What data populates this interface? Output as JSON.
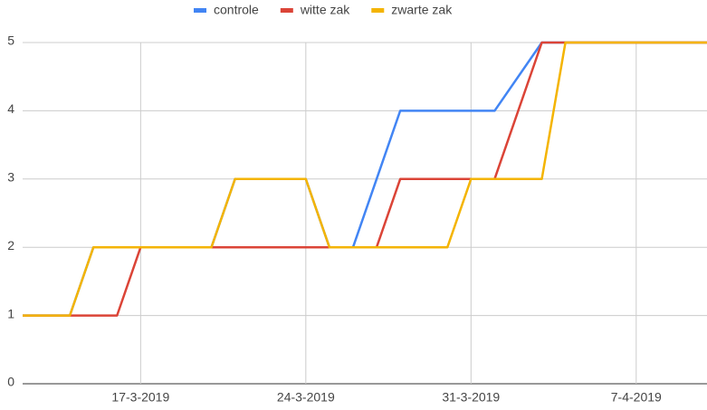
{
  "chart_data": {
    "type": "line",
    "x": [
      "12-3-2019",
      "14-3-2019",
      "15-3-2019",
      "16-3-2019",
      "17-3-2019",
      "20-3-2019",
      "21-3-2019",
      "24-3-2019",
      "25-3-2019",
      "26-3-2019",
      "27-3-2019",
      "28-3-2019",
      "30-3-2019",
      "31-3-2019",
      "1-4-2019",
      "3-4-2019",
      "4-4-2019",
      "10-4-2019"
    ],
    "series": [
      {
        "name": "controle",
        "color": "#4285f4",
        "values": [
          1,
          1,
          2,
          2,
          2,
          2,
          3,
          3,
          2,
          2,
          3,
          4,
          4,
          4,
          4,
          5,
          5,
          5
        ]
      },
      {
        "name": "witte zak",
        "color": "#db4437",
        "values": [
          1,
          1,
          1,
          1,
          2,
          2,
          2,
          2,
          2,
          2,
          2,
          3,
          3,
          3,
          3,
          5,
          5,
          5
        ]
      },
      {
        "name": "zwarte zak",
        "color": "#f4b400",
        "values": [
          1,
          1,
          2,
          2,
          2,
          2,
          3,
          3,
          2,
          2,
          2,
          2,
          2,
          3,
          3,
          3,
          5,
          5
        ]
      }
    ],
    "xlim": [
      "12-3-2019",
      "10-4-2019"
    ],
    "xticks": [
      "17-3-2019",
      "24-3-2019",
      "31-3-2019",
      "7-4-2019"
    ],
    "ylim": [
      0,
      5
    ],
    "yticks": [
      0,
      1,
      2,
      3,
      4,
      5
    ],
    "grid": true,
    "legend": "top"
  }
}
